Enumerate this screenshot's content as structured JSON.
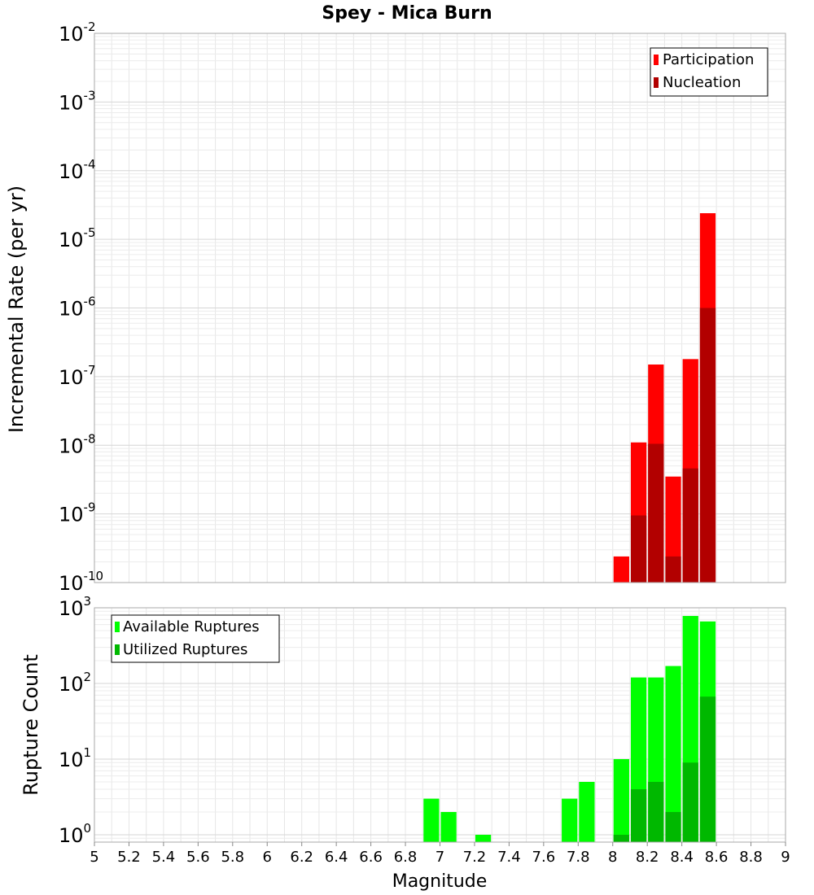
{
  "chart_data": [
    {
      "type": "bar",
      "title": "Spey - Mica Burn",
      "xlabel": "",
      "ylabel": "Incremental Rate (per yr)",
      "xlim": [
        5,
        9
      ],
      "ylim": [
        1e-10,
        0.01
      ],
      "yscale": "log",
      "y_ticks": [
        {
          "base": "10",
          "exp": "-2"
        },
        {
          "base": "10",
          "exp": "-3"
        },
        {
          "base": "10",
          "exp": "-4"
        },
        {
          "base": "10",
          "exp": "-5"
        },
        {
          "base": "10",
          "exp": "-6"
        },
        {
          "base": "10",
          "exp": "-7"
        },
        {
          "base": "10",
          "exp": "-8"
        },
        {
          "base": "10",
          "exp": "-9"
        },
        {
          "base": "10",
          "exp": "-10"
        }
      ],
      "grid": true,
      "bar_width": 0.1,
      "legend": {
        "placement": "top-right",
        "entries": [
          "Participation",
          "Nucleation"
        ]
      },
      "series": [
        {
          "name": "Participation",
          "color": "#ff0000",
          "x": [
            8.05,
            8.15,
            8.25,
            8.35,
            8.45,
            8.55
          ],
          "values": [
            2.4e-10,
            1.1e-08,
            1.5e-07,
            3.5e-09,
            1.8e-07,
            2.4e-05
          ]
        },
        {
          "name": "Nucleation",
          "color": "#b20000",
          "x": [
            8.15,
            8.25,
            8.35,
            8.45,
            8.55
          ],
          "values": [
            9.5e-10,
            1.05e-08,
            2.4e-10,
            4.6e-09,
            1e-06
          ]
        }
      ]
    },
    {
      "type": "bar",
      "title": "",
      "xlabel": "Magnitude",
      "ylabel": "Rupture Count",
      "xlim": [
        5,
        9
      ],
      "ylim": [
        0.8,
        1000
      ],
      "yscale": "log",
      "y_ticks": [
        {
          "base": "10",
          "exp": "3"
        },
        {
          "base": "10",
          "exp": "2"
        },
        {
          "base": "10",
          "exp": "1"
        },
        {
          "base": "10",
          "exp": "0"
        }
      ],
      "x_ticks": [
        "5",
        "5.2",
        "5.4",
        "5.6",
        "5.8",
        "6",
        "6.2",
        "6.4",
        "6.6",
        "6.8",
        "7",
        "7.2",
        "7.4",
        "7.6",
        "7.8",
        "8",
        "8.2",
        "8.4",
        "8.6",
        "8.8",
        "9"
      ],
      "grid": true,
      "bar_width": 0.1,
      "legend": {
        "placement": "top-left",
        "entries": [
          "Available Ruptures",
          "Utilized Ruptures"
        ]
      },
      "series": [
        {
          "name": "Available Ruptures",
          "color": "#00ff00",
          "x": [
            6.95,
            7.05,
            7.25,
            7.75,
            7.85,
            8.05,
            8.15,
            8.25,
            8.35,
            8.45,
            8.55
          ],
          "values": [
            3,
            2,
            1,
            3,
            5,
            10,
            120,
            120,
            170,
            780,
            660
          ]
        },
        {
          "name": "Utilized Ruptures",
          "color": "#00b800",
          "x": [
            8.05,
            8.15,
            8.25,
            8.35,
            8.45,
            8.55
          ],
          "values": [
            1,
            4,
            5,
            2,
            9,
            67
          ]
        }
      ]
    }
  ]
}
